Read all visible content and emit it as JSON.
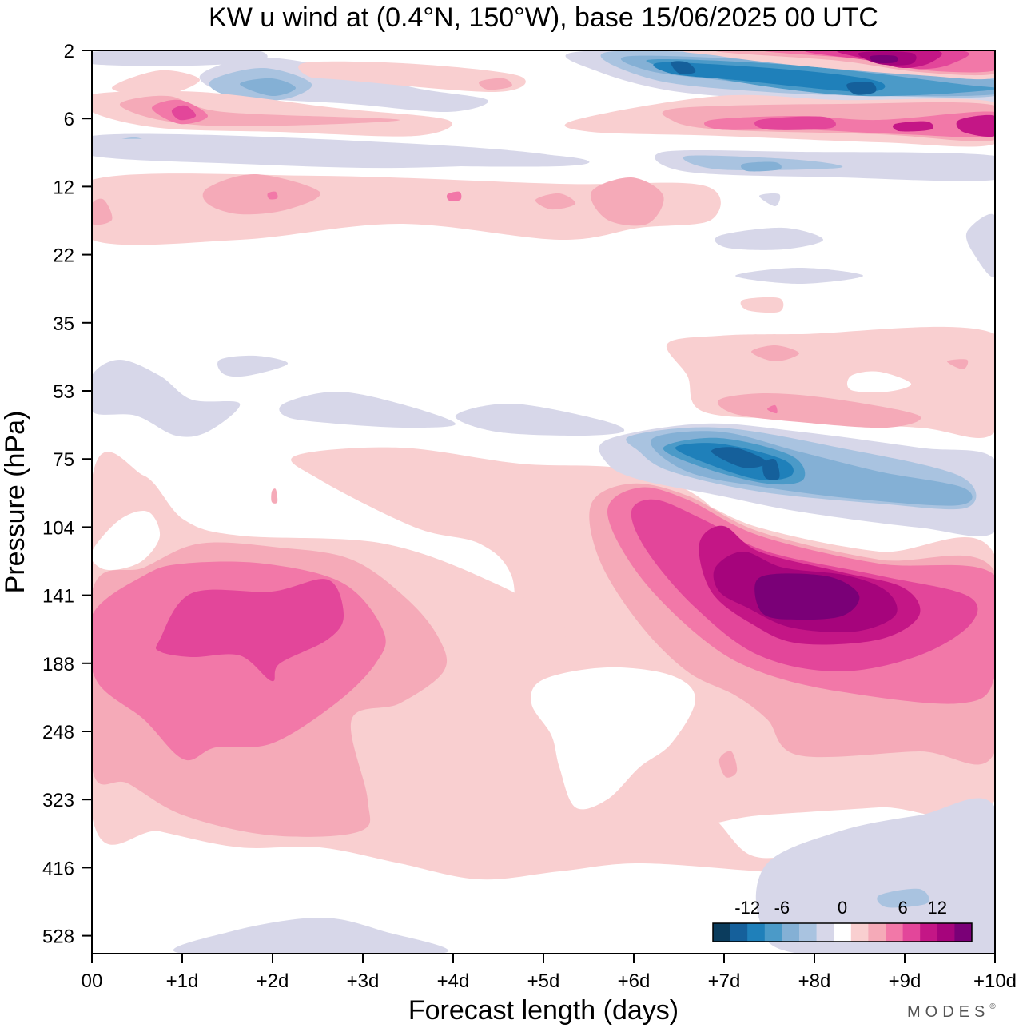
{
  "chart_data": {
    "type": "heatmap",
    "title": "KW u wind at (0.4°N, 150°W),  base 15/06/2025  00 UTC",
    "xlabel": "Forecast length (days)",
    "ylabel": "Pressure (hPa)",
    "x_ticks": [
      "00",
      "+1d",
      "+2d",
      "+3d",
      "+4d",
      "+5d",
      "+6d",
      "+7d",
      "+8d",
      "+9d",
      "+10d"
    ],
    "y_ticks": [
      "2",
      "6",
      "12",
      "22",
      "35",
      "53",
      "75",
      "104",
      "141",
      "188",
      "248",
      "323",
      "416",
      "528"
    ],
    "xlim": [
      0,
      10
    ],
    "colorbar": {
      "labels": [
        "-12",
        "-6",
        "0",
        "6",
        "12"
      ],
      "levels": [
        -16,
        -14,
        -12,
        -10,
        -8,
        -6,
        -4,
        -2,
        2,
        4,
        6,
        8,
        10,
        12,
        14,
        16
      ],
      "colors": [
        "#0b3c5d",
        "#15609b",
        "#1f80ba",
        "#4b9ac8",
        "#84b0d5",
        "#a9c3e0",
        "#d7d7e9",
        "#ffffff",
        "#f9cfd0",
        "#f5aab8",
        "#f278a8",
        "#e3469a",
        "#c41686",
        "#a6047c",
        "#7a0077"
      ]
    },
    "features": [
      {
        "name": "upper-tropospheric westerly max (early)",
        "x": [
          0.2,
          3.2
        ],
        "p": [
          130,
          240
        ],
        "peak_u": 10
      },
      {
        "name": "upper-tropospheric westerly max (late)",
        "x": [
          7.3,
          8.4
        ],
        "p": [
          125,
          165
        ],
        "peak_u": 16
      },
      {
        "name": "lower-stratospheric easterly band",
        "x": [
          6.1,
          9.7
        ],
        "p": [
          68,
          100
        ],
        "min_u": -12
      },
      {
        "name": "upper-stratospheric easterly",
        "x": [
          5.8,
          10
        ],
        "p": [
          2.5,
          4.5
        ],
        "min_u": -14
      },
      {
        "name": "upper-stratospheric westerly",
        "x": [
          7,
          10
        ],
        "p": [
          2,
          3
        ],
        "peak_u": 16
      },
      {
        "name": "mid-troposphere easterly",
        "x": [
          7.4,
          10
        ],
        "p": [
          400,
          560
        ],
        "min_u": -4
      }
    ]
  },
  "brand": "MODES",
  "brand_mark": "®"
}
